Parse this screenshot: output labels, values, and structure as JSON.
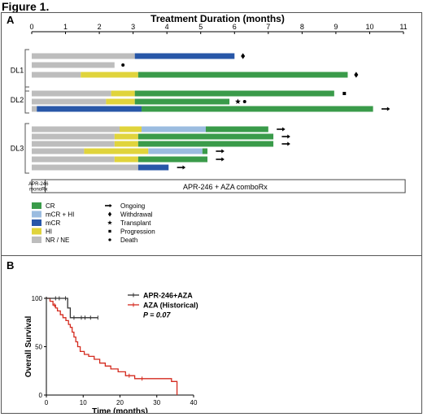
{
  "figure": {
    "title": "Figure 1."
  },
  "colors": {
    "CR": "#3a9b4a",
    "mCR_HI": "#9bbce0",
    "mCR": "#2857a8",
    "HI": "#e0d43c",
    "NR_NE": "#bdbdbd",
    "apr_line": "#333333",
    "aza_line": "#d42a1e"
  },
  "chart_data": [
    {
      "type": "bar",
      "subtype": "swimmer",
      "panel_label": "A",
      "title": "Treatment Duration (months)",
      "xlim": [
        0,
        11
      ],
      "x_ticks": [
        "0",
        "1",
        "2",
        "3",
        "4",
        "5",
        "6",
        "7",
        "8",
        "9",
        "10",
        "11"
      ],
      "groups": [
        {
          "label": "DL1",
          "rows": [
            0,
            1,
            2
          ]
        },
        {
          "label": "DL2",
          "rows": [
            3,
            4,
            5
          ]
        },
        {
          "label": "DL3",
          "rows": [
            6,
            7,
            8,
            9,
            10,
            11
          ]
        }
      ],
      "patients": [
        {
          "segments": [
            [
              "NR_NE",
              0,
              3.05
            ],
            [
              "mCR",
              3.05,
              6.0
            ]
          ],
          "markers": [
            [
              "diamond",
              6.25
            ]
          ]
        },
        {
          "segments": [
            [
              "NR_NE",
              0,
              2.45
            ]
          ],
          "markers": [
            [
              "circle",
              2.7
            ]
          ]
        },
        {
          "segments": [
            [
              "NR_NE",
              0,
              1.45
            ],
            [
              "HI",
              1.45,
              3.15
            ],
            [
              "CR",
              3.15,
              9.35
            ]
          ],
          "markers": [
            [
              "diamond",
              9.6
            ]
          ]
        },
        {
          "segments": [
            [
              "NR_NE",
              0,
              2.35
            ],
            [
              "HI",
              2.35,
              3.05
            ],
            [
              "CR",
              3.05,
              8.95
            ]
          ],
          "markers": [
            [
              "square",
              9.25
            ]
          ]
        },
        {
          "segments": [
            [
              "NR_NE",
              0,
              2.2
            ],
            [
              "HI",
              2.2,
              3.05
            ],
            [
              "CR",
              3.05,
              5.85
            ]
          ],
          "markers": [
            [
              "star",
              6.1
            ],
            [
              "circle",
              6.3
            ]
          ]
        },
        {
          "segments": [
            [
              "NR_NE",
              0,
              0.15
            ],
            [
              "mCR",
              0.15,
              3.25
            ],
            [
              "CR",
              3.25,
              10.1
            ]
          ],
          "markers": [
            [
              "arrow",
              10.35
            ]
          ]
        },
        {
          "segments": [
            [
              "NR_NE",
              0,
              2.6
            ],
            [
              "HI",
              2.6,
              3.25
            ],
            [
              "mCR_HI",
              3.25,
              5.15
            ],
            [
              "CR",
              5.15,
              7.0
            ]
          ],
          "markers": [
            [
              "arrow",
              7.25
            ]
          ]
        },
        {
          "segments": [
            [
              "NR_NE",
              0,
              2.45
            ],
            [
              "HI",
              2.45,
              3.15
            ],
            [
              "CR",
              3.15,
              7.15
            ]
          ],
          "markers": [
            [
              "arrow",
              7.4
            ]
          ]
        },
        {
          "segments": [
            [
              "NR_NE",
              0,
              2.45
            ],
            [
              "HI",
              2.45,
              3.15
            ],
            [
              "CR",
              3.15,
              7.15
            ]
          ],
          "markers": [
            [
              "arrow",
              7.4
            ]
          ]
        },
        {
          "segments": [
            [
              "NR_NE",
              0,
              1.55
            ],
            [
              "HI",
              1.55,
              3.45
            ],
            [
              "mCR_HI",
              3.45,
              5.05
            ],
            [
              "CR",
              5.05,
              5.2
            ]
          ],
          "markers": [
            [
              "arrow",
              5.45
            ]
          ]
        },
        {
          "segments": [
            [
              "NR_NE",
              0,
              2.45
            ],
            [
              "HI",
              2.45,
              3.15
            ],
            [
              "CR",
              3.15,
              5.2
            ]
          ],
          "markers": [
            [
              "arrow",
              5.45
            ]
          ]
        },
        {
          "segments": [
            [
              "NR_NE",
              0,
              3.15
            ],
            [
              "mCR",
              3.15,
              4.05
            ]
          ],
          "markers": [
            [
              "arrow",
              4.3
            ]
          ]
        }
      ],
      "phase_bar": {
        "mono_label_1": "APR-246",
        "mono_label_2": "monoRx",
        "mono_end": 0.4,
        "combo_label": "APR-246 + AZA comboRx"
      },
      "legend_response": [
        {
          "key": "CR",
          "label": "CR"
        },
        {
          "key": "mCR_HI",
          "label": "mCR + HI"
        },
        {
          "key": "mCR",
          "label": "mCR"
        },
        {
          "key": "HI",
          "label": "HI"
        },
        {
          "key": "NR_NE",
          "label": "NR / NE"
        }
      ],
      "legend_markers": [
        {
          "symbol": "arrow",
          "label": "Ongoing"
        },
        {
          "symbol": "diamond",
          "label": "Withdrawal"
        },
        {
          "symbol": "star",
          "label": "Transplant"
        },
        {
          "symbol": "square",
          "label": "Progression"
        },
        {
          "symbol": "circle",
          "label": "Death"
        }
      ]
    },
    {
      "type": "line",
      "subtype": "kaplan-meier",
      "panel_label": "B",
      "xlabel": "Time (months)",
      "ylabel": "Overall Survival",
      "xlim": [
        0,
        40
      ],
      "ylim": [
        0,
        100
      ],
      "x_ticks": [
        "0",
        "10",
        "20",
        "30",
        "40"
      ],
      "y_ticks": [
        "0",
        "50",
        "100"
      ],
      "series": [
        {
          "name": "APR-246+AZA",
          "color": "apr_line",
          "steps": [
            [
              0,
              100
            ],
            [
              5.8,
              100
            ],
            [
              5.8,
              90
            ],
            [
              6.5,
              90
            ],
            [
              6.5,
              80
            ],
            [
              14,
              80
            ]
          ],
          "censors": [
            [
              2.5,
              100
            ],
            [
              3.5,
              100
            ],
            [
              5.2,
              100
            ],
            [
              7.5,
              80
            ],
            [
              9.5,
              80
            ],
            [
              10.5,
              80
            ],
            [
              12,
              80
            ],
            [
              14,
              80
            ]
          ]
        },
        {
          "name": "AZA (Historical)",
          "color": "aza_line",
          "steps": [
            [
              0,
              100
            ],
            [
              1,
              100
            ],
            [
              1,
              97
            ],
            [
              1.8,
              97
            ],
            [
              1.8,
              93
            ],
            [
              2.5,
              93
            ],
            [
              2.5,
              90
            ],
            [
              3,
              90
            ],
            [
              3,
              87
            ],
            [
              3.8,
              87
            ],
            [
              3.8,
              83
            ],
            [
              4.5,
              83
            ],
            [
              4.5,
              80
            ],
            [
              5.3,
              80
            ],
            [
              5.3,
              77
            ],
            [
              6,
              77
            ],
            [
              6,
              73
            ],
            [
              6.5,
              73
            ],
            [
              6.5,
              70
            ],
            [
              7,
              70
            ],
            [
              7,
              65
            ],
            [
              7.5,
              65
            ],
            [
              7.5,
              60
            ],
            [
              8,
              60
            ],
            [
              8,
              55
            ],
            [
              8.5,
              55
            ],
            [
              8.5,
              50
            ],
            [
              9.2,
              50
            ],
            [
              9.2,
              45
            ],
            [
              10.3,
              45
            ],
            [
              10.3,
              42
            ],
            [
              11.5,
              42
            ],
            [
              11.5,
              40
            ],
            [
              13,
              40
            ],
            [
              13,
              37
            ],
            [
              14.5,
              37
            ],
            [
              14.5,
              33
            ],
            [
              16,
              33
            ],
            [
              16,
              30
            ],
            [
              17.5,
              30
            ],
            [
              17.5,
              27
            ],
            [
              19.5,
              27
            ],
            [
              19.5,
              24
            ],
            [
              21.5,
              24
            ],
            [
              21.5,
              20
            ],
            [
              24,
              20
            ],
            [
              24,
              17
            ],
            [
              34,
              17
            ],
            [
              34,
              14
            ],
            [
              35.5,
              14
            ],
            [
              35.5,
              0
            ]
          ],
          "censors": [
            [
              2.2,
              93
            ],
            [
              22.5,
              20
            ],
            [
              26,
              17
            ]
          ]
        }
      ],
      "annotation": "P = 0.07"
    }
  ]
}
